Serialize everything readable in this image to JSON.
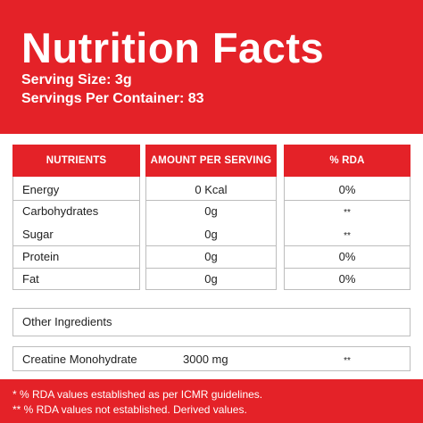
{
  "header": {
    "title": "Nutrition Facts",
    "serving_size": "Serving Size: 3g",
    "servings_per_container": "Servings Per Container: 83"
  },
  "table": {
    "columns": [
      "NUTRIENTS",
      "AMOUNT PER SERVING",
      "% RDA"
    ],
    "rows": [
      {
        "nutrient": "Energy",
        "amount": "0 Kcal",
        "rda": "0%"
      },
      {
        "nutrient": "Carbohydrates",
        "amount": "0g",
        "rda": "**"
      },
      {
        "nutrient": "Sugar",
        "amount": "0g",
        "rda": "**"
      },
      {
        "nutrient": "Protein",
        "amount": "0g",
        "rda": "0%"
      },
      {
        "nutrient": "Fat",
        "amount": "0g",
        "rda": "0%"
      }
    ]
  },
  "other_ingredients": {
    "label": "Other Ingredients",
    "item": "Creatine Monohydrate",
    "amount": "3000 mg",
    "rda": "**"
  },
  "footnotes": [
    "* % RDA values established as per ICMR guidelines.",
    "** % RDA values not established. Derived values."
  ],
  "colors": {
    "brand_red": "#e42228",
    "panel_white": "#ffffff",
    "border_gray": "#bdbdbd"
  }
}
